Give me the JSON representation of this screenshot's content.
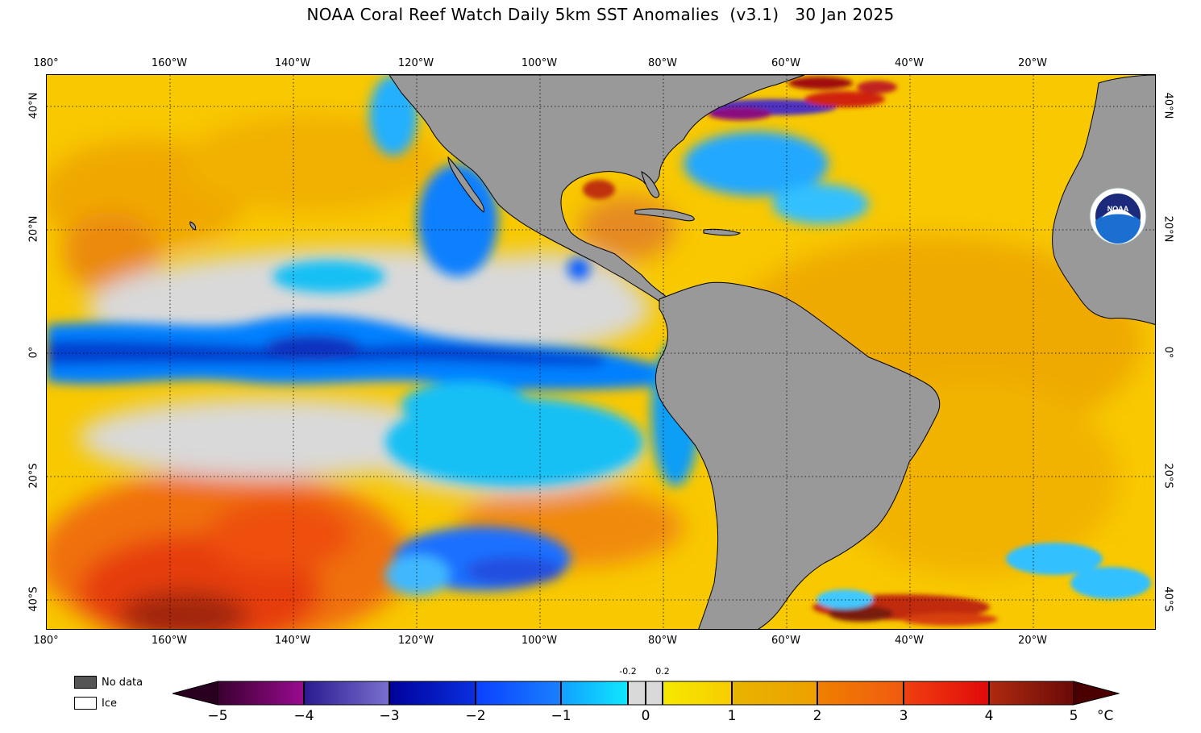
{
  "title": "NOAA Coral Reef Watch Daily 5km SST Anomalies  (v3.1)   30 Jan 2025",
  "lon_labels": [
    "180°",
    "160°W",
    "140°W",
    "120°W",
    "100°W",
    "80°W",
    "60°W",
    "40°W",
    "20°W"
  ],
  "lat_labels": [
    "40°N",
    "20°N",
    "0°",
    "20°S",
    "40°S"
  ],
  "legend": {
    "no_data": "No data",
    "ice": "Ice"
  },
  "colorbar": {
    "ticks": [
      "−5",
      "−4",
      "−3",
      "−2",
      "−1",
      "0",
      "1",
      "2",
      "3",
      "4",
      "5"
    ],
    "small_labels": [
      "-0.2",
      "0.2"
    ],
    "unit": "°C",
    "range": [
      -5,
      5
    ]
  },
  "colors": {
    "land": "#999999",
    "no_data": "#555555",
    "ice": "#ffffff",
    "neutral": "#d9d9d9",
    "warm_mid": "#f5c400",
    "cold_mid": "#00a6ff"
  },
  "logo_text": "NOAA"
}
